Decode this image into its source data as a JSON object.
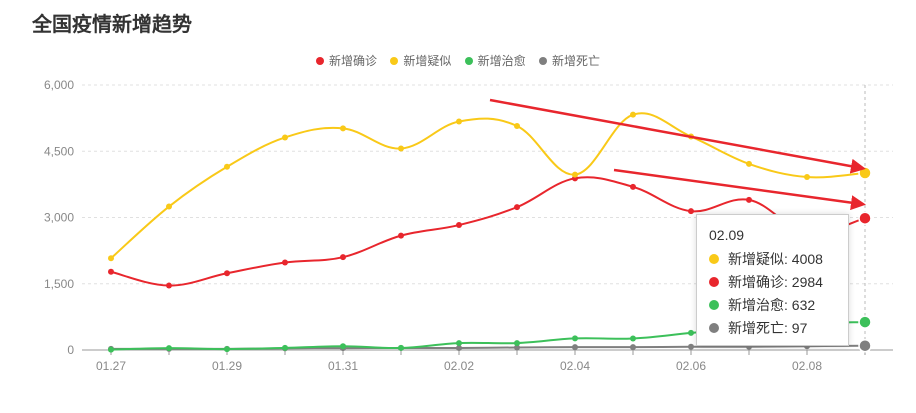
{
  "page_title": "全国疫情新增趋势",
  "chart_data": {
    "type": "line",
    "categories": [
      "01.27",
      "01.28",
      "01.29",
      "01.30",
      "01.31",
      "02.01",
      "02.02",
      "02.03",
      "02.04",
      "02.05",
      "02.06",
      "02.07",
      "02.08",
      "02.09"
    ],
    "x_tick_labels": [
      "01.27",
      "01.29",
      "01.31",
      "02.02",
      "02.04",
      "02.06",
      "02.08"
    ],
    "y_ticks": [
      "0",
      "1,500",
      "3,000",
      "4,500",
      "6,000"
    ],
    "ylim": [
      0,
      6000
    ],
    "grid": true,
    "legend_position": "top-center",
    "series": [
      {
        "name": "新增确诊",
        "color": "#e8262d",
        "values": [
          1771,
          1459,
          1737,
          1981,
          2102,
          2590,
          2829,
          3235,
          3887,
          3694,
          3143,
          3399,
          2656,
          2984
        ]
      },
      {
        "name": "新增疑似",
        "color": "#f9c918",
        "values": [
          2077,
          3248,
          4148,
          4812,
          5019,
          4562,
          5173,
          5072,
          3971,
          5328,
          4833,
          4214,
          3916,
          4008
        ]
      },
      {
        "name": "新增治愈",
        "color": "#3cc05a",
        "values": [
          9,
          43,
          21,
          47,
          85,
          47,
          157,
          157,
          262,
          261,
          387,
          510,
          600,
          632
        ]
      },
      {
        "name": "新增死亡",
        "color": "#7f7f7f",
        "values": [
          25,
          26,
          26,
          38,
          43,
          46,
          45,
          57,
          64,
          65,
          73,
          73,
          86,
          97
        ]
      }
    ]
  },
  "tooltip": {
    "date": "02.09",
    "rows": [
      {
        "label": "新增疑似: 4008",
        "color": "#f9c918"
      },
      {
        "label": "新增确诊: 2984",
        "color": "#e8262d"
      },
      {
        "label": "新增治愈: 632",
        "color": "#3cc05a"
      },
      {
        "label": "新增死亡: 97",
        "color": "#7f7f7f"
      }
    ]
  },
  "annotation_color": "#e8262d"
}
